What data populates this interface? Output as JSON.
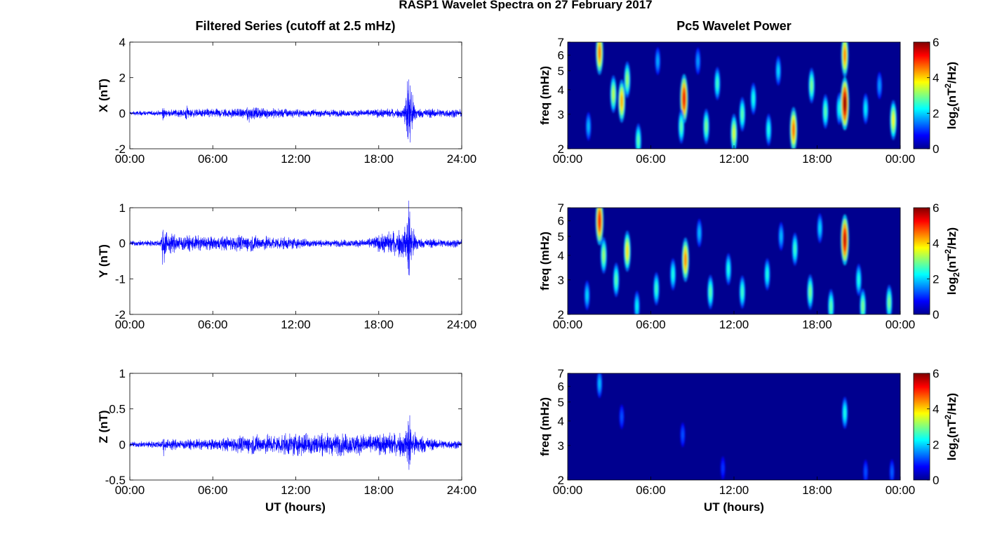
{
  "figure_title": "RASP1 Wavelet Spectra on 27 February 2017",
  "left_title": "Filtered Series (cutoff at 2.5 mHz)",
  "right_title": "Pc5 Wavelet Power",
  "xlabel": "UT (hours)",
  "colors": {
    "trace": "#0000ff",
    "frame": "#000000",
    "spectrum_background": "#00008f"
  },
  "chart_data": [
    {
      "type": "line",
      "id": "x",
      "ylabel": "X (nT)",
      "xlim": [
        0,
        24
      ],
      "ylim": [
        -2,
        4
      ],
      "xticks": [
        "00:00",
        "06:00",
        "12:00",
        "18:00",
        "24:00"
      ],
      "yticks": [
        "-2",
        "0",
        "2",
        "4"
      ],
      "envelope": [
        {
          "x": 0,
          "amp": 0.12
        },
        {
          "x": 2.3,
          "amp": 0.15
        },
        {
          "x": 2.4,
          "amp": 0.45
        },
        {
          "x": 2.6,
          "amp": 0.2
        },
        {
          "x": 4.0,
          "amp": 0.25
        },
        {
          "x": 4.1,
          "amp": 0.6
        },
        {
          "x": 4.3,
          "amp": 0.25
        },
        {
          "x": 8.4,
          "amp": 0.3
        },
        {
          "x": 8.5,
          "amp": 0.7
        },
        {
          "x": 8.8,
          "amp": 0.35
        },
        {
          "x": 12,
          "amp": 0.25
        },
        {
          "x": 16,
          "amp": 0.2
        },
        {
          "x": 19.8,
          "amp": 0.3
        },
        {
          "x": 20.0,
          "amp": 1.4
        },
        {
          "x": 20.2,
          "amp": 3.6
        },
        {
          "x": 20.4,
          "amp": 1.2
        },
        {
          "x": 20.8,
          "amp": 0.3
        },
        {
          "x": 24,
          "amp": 0.25
        }
      ]
    },
    {
      "type": "line",
      "id": "y",
      "ylabel": "Y (nT)",
      "xlim": [
        0,
        24
      ],
      "ylim": [
        -2,
        1
      ],
      "xticks": [
        "00:00",
        "06:00",
        "12:00",
        "18:00",
        "24:00"
      ],
      "yticks": [
        "-2",
        "-1",
        "0",
        "1"
      ],
      "envelope": [
        {
          "x": 0,
          "amp": 0.08
        },
        {
          "x": 2.2,
          "amp": 0.1
        },
        {
          "x": 2.4,
          "amp": 0.75
        },
        {
          "x": 2.7,
          "amp": 0.3
        },
        {
          "x": 4,
          "amp": 0.25
        },
        {
          "x": 6,
          "amp": 0.2
        },
        {
          "x": 8.5,
          "amp": 0.25
        },
        {
          "x": 11,
          "amp": 0.2
        },
        {
          "x": 14,
          "amp": 0.1
        },
        {
          "x": 17,
          "amp": 0.12
        },
        {
          "x": 20.0,
          "amp": 0.5
        },
        {
          "x": 20.2,
          "amp": 1.75
        },
        {
          "x": 20.4,
          "amp": 0.5
        },
        {
          "x": 21,
          "amp": 0.15
        },
        {
          "x": 24,
          "amp": 0.12
        }
      ]
    },
    {
      "type": "line",
      "id": "z",
      "ylabel": "Z (nT)",
      "xlim": [
        0,
        24
      ],
      "ylim": [
        -0.5,
        1
      ],
      "xticks": [
        "00:00",
        "06:00",
        "12:00",
        "18:00",
        "24:00"
      ],
      "yticks": [
        "-0.5",
        "0",
        "0.5",
        "1"
      ],
      "envelope": [
        {
          "x": 0,
          "amp": 0.04
        },
        {
          "x": 2.3,
          "amp": 0.06
        },
        {
          "x": 2.4,
          "amp": 0.2
        },
        {
          "x": 2.6,
          "amp": 0.08
        },
        {
          "x": 6,
          "amp": 0.08
        },
        {
          "x": 9,
          "amp": 0.15
        },
        {
          "x": 13,
          "amp": 0.18
        },
        {
          "x": 18,
          "amp": 0.15
        },
        {
          "x": 20.0,
          "amp": 0.2
        },
        {
          "x": 20.2,
          "amp": 0.6
        },
        {
          "x": 20.4,
          "amp": 0.2
        },
        {
          "x": 22,
          "amp": 0.08
        },
        {
          "x": 24,
          "amp": 0.06
        }
      ]
    },
    {
      "type": "heatmap",
      "id": "x-power",
      "ylabel": "freq (mHz)",
      "yscale": "log",
      "xlim": [
        0,
        24
      ],
      "ylim": [
        2,
        7
      ],
      "xticks": [
        "00:00",
        "06:00",
        "12:00",
        "18:00",
        "00:00"
      ],
      "yticks": [
        "2",
        "3",
        "4",
        "5",
        "6",
        "7"
      ],
      "colorbar": {
        "label": "log2(nT2/Hz)",
        "ticks": [
          "0",
          "2",
          "4",
          "6"
        ],
        "range": [
          0,
          6
        ]
      },
      "blobs": [
        {
          "t": 2.3,
          "f": 6.2,
          "v": 4.5
        },
        {
          "t": 3.3,
          "f": 3.8,
          "v": 3.2
        },
        {
          "t": 3.9,
          "f": 3.5,
          "v": 4.2
        },
        {
          "t": 4.3,
          "f": 4.5,
          "v": 3.0
        },
        {
          "t": 5.1,
          "f": 2.2,
          "v": 2.6
        },
        {
          "t": 1.5,
          "f": 2.6,
          "v": 1.6
        },
        {
          "t": 8.4,
          "f": 3.6,
          "v": 5.3
        },
        {
          "t": 8.2,
          "f": 2.6,
          "v": 2.6
        },
        {
          "t": 10.0,
          "f": 2.6,
          "v": 2.8
        },
        {
          "t": 10.8,
          "f": 4.3,
          "v": 2.4
        },
        {
          "t": 12.0,
          "f": 2.4,
          "v": 3.4
        },
        {
          "t": 12.6,
          "f": 3.0,
          "v": 2.6
        },
        {
          "t": 13.4,
          "f": 3.6,
          "v": 2.2
        },
        {
          "t": 14.5,
          "f": 2.5,
          "v": 2.2
        },
        {
          "t": 16.3,
          "f": 2.5,
          "v": 4.6
        },
        {
          "t": 17.6,
          "f": 4.2,
          "v": 2.8
        },
        {
          "t": 18.6,
          "f": 3.1,
          "v": 2.6
        },
        {
          "t": 19.6,
          "f": 3.2,
          "v": 2.2
        },
        {
          "t": 20.0,
          "f": 3.4,
          "v": 6.0
        },
        {
          "t": 20.0,
          "f": 6.0,
          "v": 4.4
        },
        {
          "t": 21.5,
          "f": 3.2,
          "v": 2.0
        },
        {
          "t": 23.5,
          "f": 2.8,
          "v": 3.6
        },
        {
          "t": 6.5,
          "f": 5.6,
          "v": 1.5
        },
        {
          "t": 15.2,
          "f": 5.0,
          "v": 1.8
        },
        {
          "t": 9.4,
          "f": 5.6,
          "v": 1.4
        },
        {
          "t": 22.5,
          "f": 4.2,
          "v": 1.4
        }
      ]
    },
    {
      "type": "heatmap",
      "id": "y-power",
      "ylabel": "freq (mHz)",
      "yscale": "log",
      "xlim": [
        0,
        24
      ],
      "ylim": [
        2,
        7
      ],
      "xticks": [
        "00:00",
        "06:00",
        "12:00",
        "18:00",
        "00:00"
      ],
      "yticks": [
        "2",
        "3",
        "4",
        "5",
        "6",
        "7"
      ],
      "colorbar": {
        "label": "log2(nT2/Hz)",
        "ticks": [
          "0",
          "2",
          "4",
          "6"
        ],
        "range": [
          0,
          6
        ]
      },
      "blobs": [
        {
          "t": 2.3,
          "f": 6.0,
          "v": 5.2
        },
        {
          "t": 2.6,
          "f": 4.0,
          "v": 3.0
        },
        {
          "t": 1.4,
          "f": 2.5,
          "v": 1.8
        },
        {
          "t": 3.5,
          "f": 3.0,
          "v": 2.6
        },
        {
          "t": 4.3,
          "f": 4.2,
          "v": 3.8
        },
        {
          "t": 5.0,
          "f": 2.2,
          "v": 2.0
        },
        {
          "t": 6.4,
          "f": 2.7,
          "v": 2.4
        },
        {
          "t": 7.6,
          "f": 3.2,
          "v": 2.2
        },
        {
          "t": 8.5,
          "f": 3.8,
          "v": 4.4
        },
        {
          "t": 10.3,
          "f": 2.6,
          "v": 2.6
        },
        {
          "t": 11.6,
          "f": 3.4,
          "v": 2.2
        },
        {
          "t": 12.6,
          "f": 2.6,
          "v": 2.4
        },
        {
          "t": 14.4,
          "f": 3.2,
          "v": 2.2
        },
        {
          "t": 16.4,
          "f": 4.3,
          "v": 2.4
        },
        {
          "t": 17.5,
          "f": 2.6,
          "v": 2.8
        },
        {
          "t": 19.0,
          "f": 2.2,
          "v": 2.6
        },
        {
          "t": 20.0,
          "f": 4.8,
          "v": 5.6
        },
        {
          "t": 21.0,
          "f": 3.0,
          "v": 2.2
        },
        {
          "t": 21.3,
          "f": 2.2,
          "v": 2.8
        },
        {
          "t": 23.2,
          "f": 2.3,
          "v": 2.8
        },
        {
          "t": 9.5,
          "f": 5.2,
          "v": 1.6
        },
        {
          "t": 15.4,
          "f": 5.0,
          "v": 1.6
        },
        {
          "t": 18.2,
          "f": 5.5,
          "v": 1.8
        }
      ]
    },
    {
      "type": "heatmap",
      "id": "z-power",
      "ylabel": "freq (mHz)",
      "yscale": "log",
      "xlim": [
        0,
        24
      ],
      "ylim": [
        2,
        7
      ],
      "xticks": [
        "00:00",
        "06:00",
        "12:00",
        "18:00",
        "00:00"
      ],
      "yticks": [
        "2",
        "3",
        "4",
        "5",
        "6",
        "7"
      ],
      "colorbar": {
        "label": "log2(nT2/Hz)",
        "ticks": [
          "0",
          "2",
          "4",
          "6"
        ],
        "range": [
          0,
          6
        ]
      },
      "blobs": [
        {
          "t": 2.3,
          "f": 6.2,
          "v": 1.6
        },
        {
          "t": 3.9,
          "f": 4.2,
          "v": 0.9
        },
        {
          "t": 8.3,
          "f": 3.4,
          "v": 0.9
        },
        {
          "t": 11.2,
          "f": 2.3,
          "v": 0.7
        },
        {
          "t": 20.0,
          "f": 4.4,
          "v": 2.2
        },
        {
          "t": 21.5,
          "f": 2.2,
          "v": 0.9
        },
        {
          "t": 23.4,
          "f": 2.2,
          "v": 1.0
        }
      ]
    }
  ]
}
